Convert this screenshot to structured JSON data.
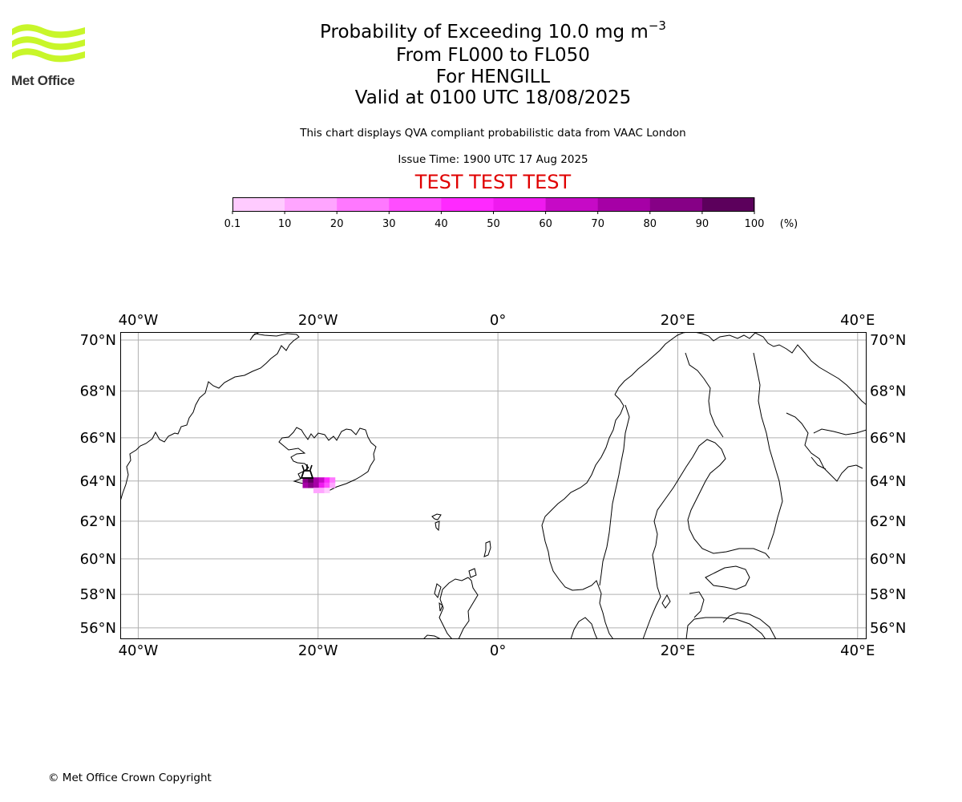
{
  "logo": {
    "text": "Met Office",
    "brand_color": "#c8f62a",
    "text_color": "#333333"
  },
  "header": {
    "title_main": "Probability of Exceeding 10.0 mg m",
    "title_unit_exponent": "−3",
    "title_levels": "From FL000 to FL050",
    "title_volcano": "For HENGILL",
    "title_valid": "Valid at 0100 UTC 18/08/2025",
    "description": "This chart displays QVA compliant probabilistic data from VAAC London",
    "issue_time": "Issue Time: 1900 UTC 17 Aug 2025",
    "test_banner": "TEST TEST TEST",
    "test_color": "#e00000"
  },
  "colorbar": {
    "ticks": [
      "0.1",
      "10",
      "20",
      "30",
      "40",
      "50",
      "60",
      "70",
      "80",
      "90",
      "100"
    ],
    "unit_label": "(%)",
    "colors": [
      "#ffe6ff",
      "#ffcbff",
      "#ffa5ff",
      "#ff78ff",
      "#ff4dff",
      "#ff29ff",
      "#ef1aef",
      "#c60ac6",
      "#a600a6",
      "#860086",
      "#5c005c"
    ]
  },
  "map": {
    "lon_range": [
      -42,
      41
    ],
    "lat_range": [
      55.3,
      70.3
    ],
    "x_ticks": [
      "40°W",
      "20°W",
      "0°",
      "20°E",
      "40°E"
    ],
    "x_tick_values": [
      -40,
      -20,
      0,
      20,
      40
    ],
    "y_ticks": [
      "70°N",
      "68°N",
      "66°N",
      "64°N",
      "62°N",
      "60°N",
      "58°N",
      "56°N"
    ],
    "y_tick_values": [
      70,
      68,
      66,
      64,
      62,
      60,
      58,
      56
    ],
    "gridlines": true,
    "volcano_marker": "volcano-marker",
    "plume": [
      {
        "lon": -21.4,
        "lat": 64.05,
        "prob": 85
      },
      {
        "lon": -20.8,
        "lat": 64.05,
        "prob": 90
      },
      {
        "lon": -20.2,
        "lat": 64.05,
        "prob": 75
      },
      {
        "lon": -19.6,
        "lat": 64.05,
        "prob": 65
      },
      {
        "lon": -19.0,
        "lat": 64.05,
        "prob": 45
      },
      {
        "lon": -18.4,
        "lat": 64.05,
        "prob": 25
      },
      {
        "lon": -21.4,
        "lat": 63.8,
        "prob": 70
      },
      {
        "lon": -20.8,
        "lat": 63.8,
        "prob": 80
      },
      {
        "lon": -20.2,
        "lat": 63.8,
        "prob": 70
      },
      {
        "lon": -19.6,
        "lat": 63.8,
        "prob": 55
      },
      {
        "lon": -19.0,
        "lat": 63.8,
        "prob": 35
      },
      {
        "lon": -18.4,
        "lat": 63.8,
        "prob": 15
      },
      {
        "lon": -20.2,
        "lat": 63.55,
        "prob": 15
      },
      {
        "lon": -19.6,
        "lat": 63.55,
        "prob": 10
      },
      {
        "lon": -19.0,
        "lat": 63.55,
        "prob": 5
      }
    ]
  },
  "footer": {
    "copyright": "© Met Office Crown Copyright"
  }
}
